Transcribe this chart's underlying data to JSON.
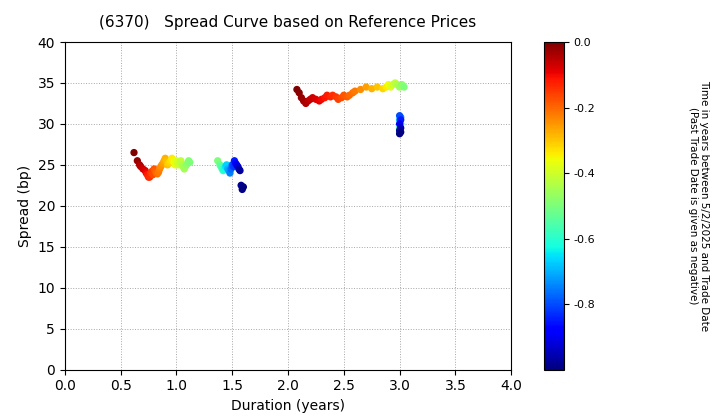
{
  "title": "(6370)   Spread Curve based on Reference Prices",
  "xlabel": "Duration (years)",
  "ylabel": "Spread (bp)",
  "colorbar_label": "Time in years between 5/2/2025 and Trade Date\n(Past Trade Date is given as negative)",
  "xlim": [
    0.0,
    4.0
  ],
  "ylim": [
    0,
    40
  ],
  "xticks": [
    0.0,
    0.5,
    1.0,
    1.5,
    2.0,
    2.5,
    3.0,
    3.5,
    4.0
  ],
  "yticks": [
    0,
    5,
    10,
    15,
    20,
    25,
    30,
    35,
    40
  ],
  "colorbar_ticks": [
    0.0,
    -0.2,
    -0.4,
    -0.6,
    -0.8
  ],
  "colorbar_vmin": -1.0,
  "colorbar_vmax": 0.0,
  "cluster1_dur": [
    0.62,
    0.65,
    0.67,
    0.68,
    0.7,
    0.72,
    0.73,
    0.74,
    0.75,
    0.76,
    0.77,
    0.78,
    0.79,
    0.8,
    0.81,
    0.82,
    0.83,
    0.84,
    0.85,
    0.86,
    0.87,
    0.88,
    0.89,
    0.9,
    0.91,
    0.92,
    0.93,
    0.94,
    0.95,
    0.96,
    0.97,
    0.98,
    0.99,
    1.0,
    1.01,
    1.02,
    1.03,
    1.04,
    1.05,
    1.06,
    1.07,
    1.08,
    1.09,
    1.1,
    1.11,
    1.12
  ],
  "cluster1_spread": [
    26.5,
    25.5,
    25.0,
    24.8,
    24.5,
    24.3,
    24.0,
    23.8,
    23.5,
    23.5,
    24.0,
    24.2,
    23.8,
    24.5,
    24.3,
    24.0,
    23.9,
    24.1,
    24.5,
    24.8,
    25.0,
    25.2,
    25.5,
    25.8,
    25.5,
    25.0,
    25.2,
    25.3,
    25.5,
    25.8,
    25.5,
    25.3,
    25.0,
    25.5,
    25.3,
    25.0,
    25.2,
    25.5,
    25.0,
    24.8,
    24.5,
    24.8,
    25.0,
    25.2,
    25.5,
    25.3
  ],
  "cluster1_color": [
    0.0,
    -0.02,
    -0.04,
    -0.05,
    -0.07,
    -0.08,
    -0.1,
    -0.12,
    -0.13,
    -0.14,
    -0.15,
    -0.16,
    -0.17,
    -0.18,
    -0.19,
    -0.2,
    -0.21,
    -0.22,
    -0.23,
    -0.24,
    -0.25,
    -0.26,
    -0.27,
    -0.28,
    -0.29,
    -0.3,
    -0.31,
    -0.32,
    -0.33,
    -0.34,
    -0.35,
    -0.36,
    -0.37,
    -0.38,
    -0.39,
    -0.4,
    -0.41,
    -0.42,
    -0.43,
    -0.44,
    -0.45,
    -0.46,
    -0.47,
    -0.48,
    -0.49,
    -0.5
  ],
  "cluster2_dur": [
    1.37,
    1.39,
    1.4,
    1.41,
    1.42,
    1.43,
    1.44,
    1.45,
    1.46,
    1.47,
    1.48,
    1.49,
    1.5,
    1.51,
    1.52,
    1.53,
    1.54,
    1.55,
    1.56,
    1.57,
    1.58,
    1.59,
    1.6
  ],
  "cluster2_spread": [
    25.5,
    25.0,
    24.8,
    24.5,
    24.3,
    24.5,
    24.8,
    25.0,
    24.5,
    24.3,
    24.0,
    24.5,
    25.0,
    24.8,
    25.5,
    25.2,
    25.0,
    24.8,
    24.5,
    24.3,
    22.5,
    22.0,
    22.3
  ],
  "cluster2_color": [
    -0.5,
    -0.53,
    -0.55,
    -0.57,
    -0.6,
    -0.62,
    -0.65,
    -0.67,
    -0.7,
    -0.72,
    -0.75,
    -0.77,
    -0.8,
    -0.82,
    -0.85,
    -0.87,
    -0.9,
    -0.92,
    -0.95,
    -0.97,
    -0.98,
    -0.99,
    -1.0
  ],
  "cluster3_dur": [
    2.08,
    2.1,
    2.12,
    2.14,
    2.16,
    2.18,
    2.2,
    2.22,
    2.25,
    2.28,
    2.3,
    2.33,
    2.35,
    2.38,
    2.4,
    2.43,
    2.45,
    2.48,
    2.5,
    2.53,
    2.55,
    2.58,
    2.6,
    2.65,
    2.7,
    2.75,
    2.8,
    2.85,
    2.88,
    2.9,
    2.92,
    2.94,
    2.96,
    2.98,
    3.0,
    3.02,
    3.04
  ],
  "cluster3_spread": [
    34.2,
    33.8,
    33.2,
    32.8,
    32.5,
    32.8,
    33.0,
    33.2,
    33.0,
    32.8,
    33.0,
    33.2,
    33.5,
    33.3,
    33.5,
    33.3,
    33.0,
    33.2,
    33.5,
    33.3,
    33.5,
    33.8,
    34.0,
    34.2,
    34.5,
    34.3,
    34.5,
    34.3,
    34.5,
    34.8,
    34.5,
    34.8,
    35.0,
    34.8,
    34.5,
    34.8,
    34.5
  ],
  "cluster3_color": [
    0.0,
    -0.01,
    -0.02,
    -0.03,
    -0.04,
    -0.05,
    -0.06,
    -0.07,
    -0.08,
    -0.09,
    -0.1,
    -0.11,
    -0.12,
    -0.13,
    -0.14,
    -0.15,
    -0.16,
    -0.17,
    -0.18,
    -0.19,
    -0.2,
    -0.21,
    -0.22,
    -0.24,
    -0.26,
    -0.28,
    -0.3,
    -0.32,
    -0.34,
    -0.36,
    -0.38,
    -0.4,
    -0.42,
    -0.44,
    -0.46,
    -0.48,
    -0.5
  ],
  "cluster4_dur": [
    3.0,
    3.0,
    3.01,
    3.0,
    3.01,
    3.0,
    3.01,
    3.0,
    3.01,
    3.0,
    3.01,
    3.0
  ],
  "cluster4_spread": [
    29.0,
    29.5,
    30.0,
    30.5,
    30.8,
    31.0,
    30.5,
    30.0,
    29.5,
    29.2,
    29.0,
    28.8
  ],
  "cluster4_color": [
    -0.55,
    -0.6,
    -0.65,
    -0.7,
    -0.75,
    -0.8,
    -0.85,
    -0.9,
    -0.95,
    -0.97,
    -0.99,
    -1.0
  ],
  "point_size": 18,
  "background_color": "#ffffff",
  "grid_color": "gray",
  "grid_style": ":",
  "grid_alpha": 0.7,
  "grid_linewidth": 0.7
}
